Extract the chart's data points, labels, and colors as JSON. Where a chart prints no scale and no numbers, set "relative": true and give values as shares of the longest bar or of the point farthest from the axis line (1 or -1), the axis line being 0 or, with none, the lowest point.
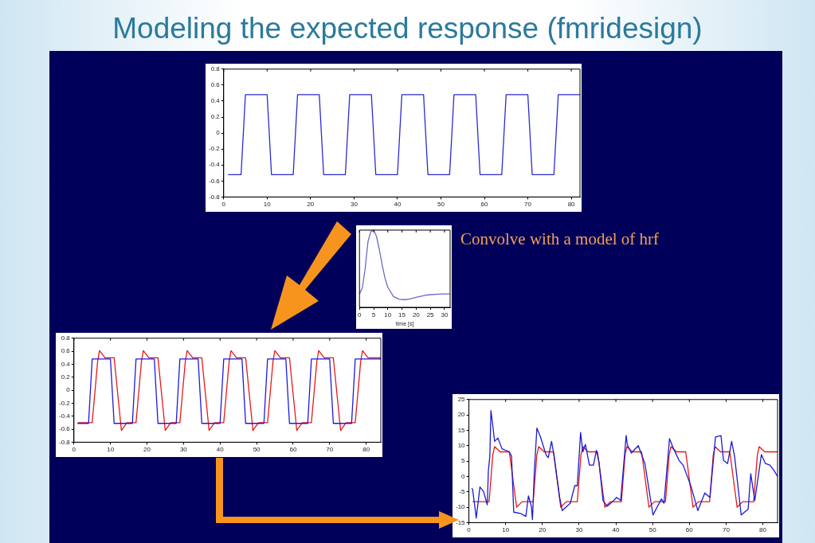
{
  "chart_data": [
    {
      "type": "line",
      "title": "Modeling the expected response (fmridesign)",
      "xlim": [
        0,
        82
      ],
      "xticks": [
        0,
        10,
        20,
        30,
        40,
        50,
        60,
        70,
        80
      ],
      "ylim": [
        -0.8,
        0.8
      ],
      "yticks": [
        -0.8,
        -0.6,
        -0.4,
        -0.2,
        0,
        0.2,
        0.4,
        0.6,
        0.8
      ],
      "grid": false,
      "legend": false,
      "marker": "none",
      "line_style": "solid",
      "series": [
        {
          "color": "#2a2ad0",
          "x": [
            1,
            4,
            5,
            10,
            11,
            16,
            17,
            22,
            23,
            28,
            29,
            34,
            35,
            40,
            41,
            46,
            47,
            52,
            53,
            58,
            59,
            64,
            65,
            70,
            71,
            76,
            77,
            82
          ],
          "values": [
            -0.52,
            -0.52,
            0.48,
            0.48,
            -0.52,
            -0.52,
            0.48,
            0.48,
            -0.52,
            -0.52,
            0.48,
            0.48,
            -0.52,
            -0.52,
            0.48,
            0.48,
            -0.52,
            -0.52,
            0.48,
            0.48,
            -0.52,
            -0.52,
            0.48,
            0.48,
            -0.52,
            -0.52,
            0.48,
            0.48
          ]
        }
      ]
    },
    {
      "type": "line",
      "relative": true,
      "tick_labels": "x",
      "xlabel": "time [s]",
      "xlim": [
        0,
        32
      ],
      "xticks": [
        0,
        5,
        10,
        15,
        20,
        25,
        30
      ],
      "grid": false,
      "legend": false,
      "marker": "none",
      "line_style": "solid",
      "annotations": [
        "Convolve with a model of hrf"
      ],
      "series": [
        {
          "color": "#6a6ac8",
          "x": [
            0,
            1,
            2,
            3,
            4,
            5,
            6,
            7,
            8,
            9,
            10,
            12,
            14,
            16,
            18,
            20,
            24,
            28,
            32
          ],
          "values": [
            0.174,
            0.25,
            0.5,
            0.85,
            0.98,
            1,
            0.92,
            0.75,
            0.55,
            0.38,
            0.26,
            0.14,
            0.105,
            0.098,
            0.11,
            0.13,
            0.16,
            0.172,
            0.174
          ]
        }
      ]
    },
    {
      "type": "line",
      "xlim": [
        0,
        84
      ],
      "xticks": [
        0,
        10,
        20,
        30,
        40,
        50,
        60,
        70,
        80
      ],
      "ylim": [
        -0.8,
        0.8
      ],
      "yticks": [
        -0.8,
        -0.6,
        -0.4,
        -0.2,
        0,
        0.2,
        0.4,
        0.6,
        0.8
      ],
      "grid": false,
      "legend": false,
      "marker": "none",
      "line_style": "solid",
      "series": [
        {
          "color": "#1a1ae0",
          "x": [
            1,
            4,
            5,
            10,
            11,
            16,
            17,
            22,
            23,
            28,
            29,
            34,
            35,
            40,
            41,
            46,
            47,
            52,
            53,
            58,
            59,
            64,
            65,
            70,
            71,
            76,
            77,
            84
          ],
          "values": [
            -0.51,
            -0.51,
            0.48,
            0.48,
            -0.51,
            -0.51,
            0.48,
            0.48,
            -0.51,
            -0.51,
            0.48,
            0.48,
            -0.51,
            -0.51,
            0.48,
            0.48,
            -0.51,
            -0.51,
            0.48,
            0.48,
            -0.51,
            -0.51,
            0.48,
            0.48,
            -0.51,
            -0.51,
            0.48,
            0.48
          ]
        },
        {
          "color": "#e81818",
          "x": [
            1,
            5,
            6.5,
            7,
            8.5,
            11,
            13,
            14.5,
            17,
            18.5,
            19,
            20.5,
            23,
            25,
            26.5,
            29,
            30.5,
            31,
            32.5,
            35,
            37,
            38.5,
            41,
            42.5,
            43,
            44.5,
            47,
            49,
            50.5,
            53,
            54.5,
            55,
            56.5,
            59,
            61,
            62.5,
            65,
            66.5,
            67,
            68.5,
            71,
            73,
            74.5,
            77,
            78.5,
            79,
            80.5,
            84
          ],
          "values": [
            -0.5,
            -0.5,
            0.45,
            0.61,
            0.5,
            0.5,
            -0.62,
            -0.5,
            -0.5,
            0.45,
            0.61,
            0.5,
            0.5,
            -0.62,
            -0.5,
            -0.5,
            0.45,
            0.61,
            0.5,
            0.5,
            -0.62,
            -0.5,
            -0.5,
            0.45,
            0.61,
            0.5,
            0.5,
            -0.62,
            -0.5,
            -0.5,
            0.45,
            0.61,
            0.5,
            0.5,
            -0.62,
            -0.5,
            -0.5,
            0.45,
            0.61,
            0.5,
            0.5,
            -0.62,
            -0.5,
            -0.5,
            0.45,
            0.61,
            0.5,
            0.5
          ]
        }
      ]
    },
    {
      "type": "line",
      "xlim": [
        0,
        84
      ],
      "xticks": [
        0,
        10,
        20,
        30,
        40,
        50,
        60,
        70,
        80
      ],
      "ylim": [
        -15,
        25
      ],
      "yticks": [
        -15,
        -10,
        -5,
        0,
        5,
        10,
        15,
        20,
        25
      ],
      "grid": false,
      "legend": false,
      "marker": "none",
      "line_style": "solid",
      "series": [
        {
          "color": "#1a1ad0",
          "x": [
            0.7,
            1,
            1.7,
            2,
            3,
            4,
            5,
            5.3,
            5.7,
            6,
            6.5,
            7,
            7.9,
            9,
            11,
            11.6,
            12.2,
            14,
            15.5,
            16.2,
            17,
            17.3,
            17.8,
            18.5,
            19.5,
            21,
            21.6,
            22.5,
            23.2,
            24.7,
            25.4,
            27.6,
            28.8,
            29.5,
            30.4,
            31,
            31.7,
            32.8,
            33.9,
            34.7,
            35.4,
            36.5,
            37.6,
            39.1,
            40.2,
            41.3,
            42.8,
            43.1,
            44.2,
            46.1,
            47.9,
            50.1,
            52.4,
            53.1,
            54.6,
            55.7,
            57.2,
            58.3,
            60.5,
            62.3,
            64.2,
            65.6,
            67.1,
            68.6,
            69.3,
            70.4,
            71.5,
            72.3,
            74.1,
            76,
            76.7,
            77.8,
            79.6,
            80.7,
            81.9,
            83,
            84
          ],
          "values": [
            -3.9,
            -4.1,
            -10.6,
            -13.5,
            -3.4,
            -4.9,
            -9.2,
            1.8,
            6.6,
            21.4,
            16.6,
            11.4,
            12.5,
            9,
            8,
            6.6,
            -11.6,
            -12,
            -13,
            -6.3,
            -9.7,
            -14,
            1.3,
            15.7,
            12.8,
            7,
            6.1,
            11.4,
            6.6,
            -6.8,
            -11.1,
            -8.7,
            -3,
            -3,
            14.3,
            8,
            10.4,
            3.7,
            3.7,
            8.5,
            4.7,
            -7.8,
            -9.7,
            -8.2,
            -6.8,
            -7.8,
            13.3,
            10.4,
            7.6,
            10,
            4.2,
            -12.5,
            -7.3,
            -8.7,
            12.3,
            9,
            5.2,
            3.7,
            -3.4,
            -11.1,
            -5.4,
            -6.8,
            12.8,
            13.3,
            5.2,
            4.2,
            11.4,
            6.6,
            -12.5,
            -10.6,
            0.9,
            -7.8,
            7.1,
            4.2,
            3.7,
            2,
            0
          ]
        },
        {
          "color": "#e81818",
          "x": [
            1,
            5.5,
            6.5,
            7,
            8.5,
            11,
            13,
            14.5,
            17.5,
            18.5,
            19,
            20.5,
            23,
            25,
            26.5,
            29.5,
            30.5,
            31,
            32.5,
            35,
            37,
            38.5,
            41.5,
            42.5,
            43,
            44.5,
            47,
            49,
            50.5,
            53.5,
            54.5,
            55,
            56.5,
            59,
            61,
            62.5,
            65.5,
            66.5,
            67,
            68.5,
            71,
            73,
            74.5,
            77.5,
            78.5,
            79,
            80.5,
            84
          ],
          "values": [
            -8.2,
            -8.2,
            7,
            9.7,
            8,
            8,
            -10,
            -8.2,
            -8.2,
            7,
            9.7,
            8,
            8,
            -10,
            -8.2,
            -8.2,
            7,
            9.7,
            8,
            8,
            -10,
            -8.2,
            -8.2,
            7,
            9.7,
            8,
            8,
            -10,
            -8.2,
            -8.2,
            7,
            9.7,
            8,
            8,
            -10,
            -8.2,
            -8.2,
            7,
            9.7,
            8,
            8,
            -10,
            -8.2,
            -8.2,
            7,
            9.7,
            8,
            8
          ]
        }
      ]
    }
  ]
}
